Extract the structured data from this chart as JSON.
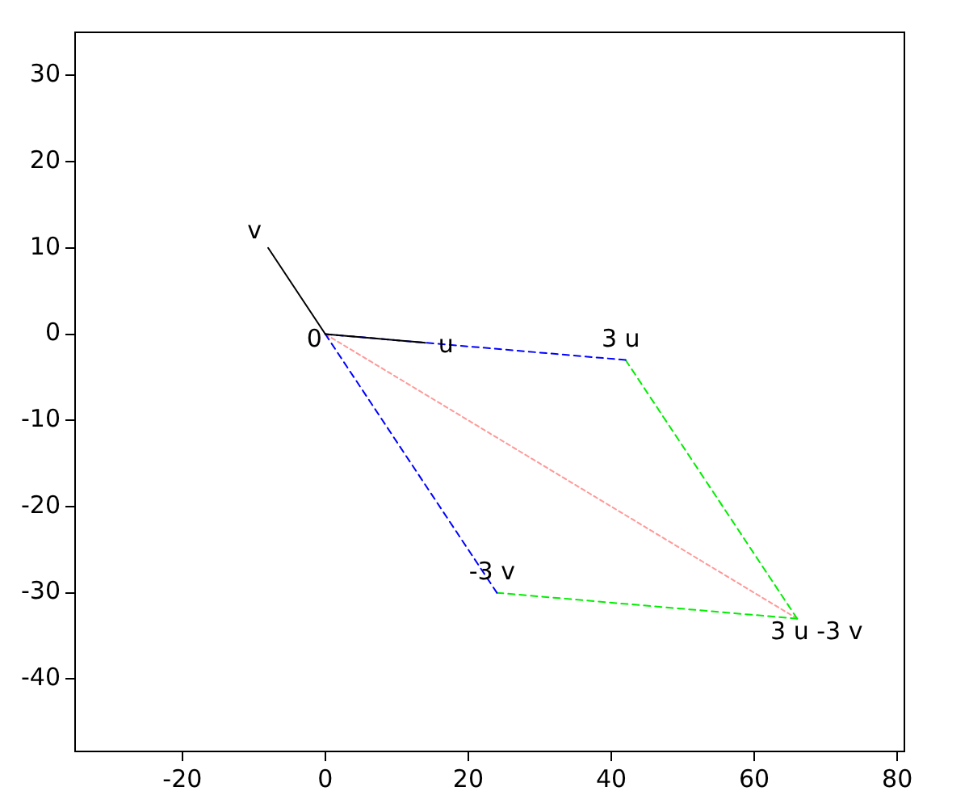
{
  "chart_data": {
    "type": "line",
    "xlim": [
      -35,
      81
    ],
    "ylim": [
      -48.4,
      35
    ],
    "xticks": [
      -20,
      0,
      20,
      40,
      60,
      80
    ],
    "yticks": [
      -40,
      -30,
      -20,
      -10,
      0,
      10,
      20,
      30
    ],
    "grid": false,
    "legend": false,
    "marker": "none",
    "series": [
      {
        "color": "#000000",
        "line_style": "solid",
        "x": [
          0,
          -8
        ],
        "values": [
          0,
          10
        ]
      },
      {
        "color": "#000000",
        "line_style": "solid",
        "x": [
          0,
          14
        ],
        "values": [
          0,
          -1
        ]
      },
      {
        "color": "#0000ff",
        "line_style": "dashed",
        "x": [
          0,
          42
        ],
        "values": [
          0,
          -3
        ]
      },
      {
        "color": "#0000ff",
        "line_style": "dashed",
        "x": [
          0,
          24
        ],
        "values": [
          0,
          -30
        ]
      },
      {
        "color": "#00ee00",
        "line_style": "dashed",
        "x": [
          42,
          66
        ],
        "values": [
          -3,
          -33
        ]
      },
      {
        "color": "#00ee00",
        "line_style": "dashed",
        "x": [
          24,
          66
        ],
        "values": [
          -30,
          -33
        ]
      },
      {
        "color": "#ff9999",
        "line_style": "dotted",
        "x": [
          0,
          66
        ],
        "values": [
          0,
          -33
        ]
      }
    ],
    "annotations": [
      {
        "text": "0",
        "x": 0,
        "y": 0
      },
      {
        "text": "u",
        "x": 14,
        "y": -1
      },
      {
        "text": "v",
        "x": -8,
        "y": 10
      },
      {
        "text": "3 u",
        "x": 42,
        "y": -3
      },
      {
        "text": "-3 v",
        "x": 24,
        "y": -30
      },
      {
        "text": "3 u -3 v",
        "x": 66,
        "y": -33
      }
    ]
  }
}
